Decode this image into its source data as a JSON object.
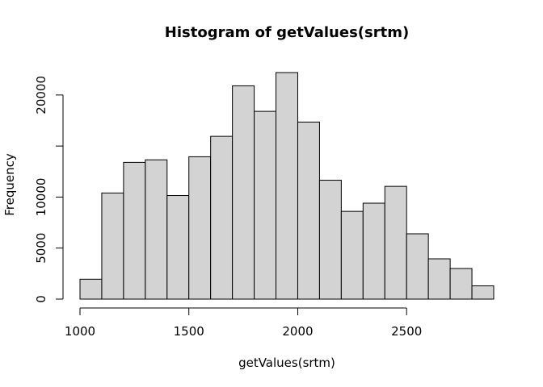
{
  "chart_data": {
    "type": "bar",
    "title": "Histogram of getValues(srtm)",
    "xlabel": "getValues(srtm)",
    "ylabel": "Frequency",
    "bin_edges": [
      1000,
      1100,
      1200,
      1300,
      1400,
      1500,
      1600,
      1700,
      1800,
      1900,
      2000,
      2100,
      2200,
      2300,
      2400,
      2500,
      2600,
      2700,
      2800,
      2900
    ],
    "values": [
      1950,
      10400,
      13400,
      13650,
      10150,
      13950,
      15950,
      20900,
      18400,
      22200,
      17350,
      11650,
      8600,
      9400,
      11050,
      6400,
      3950,
      3000,
      1300
    ],
    "xlim": [
      1000,
      2900
    ],
    "ylim": [
      0,
      22200
    ],
    "x_ticks": [
      1000,
      1500,
      2000,
      2500
    ],
    "x_tick_labels": [
      "1000",
      "1500",
      "2000",
      "2500"
    ],
    "y_ticks": [
      0,
      5000,
      10000,
      15000,
      20000
    ],
    "y_tick_labels": [
      "0",
      "5000",
      "10000",
      "",
      "20000"
    ],
    "bar_color": "#d3d3d3",
    "grid": false
  }
}
